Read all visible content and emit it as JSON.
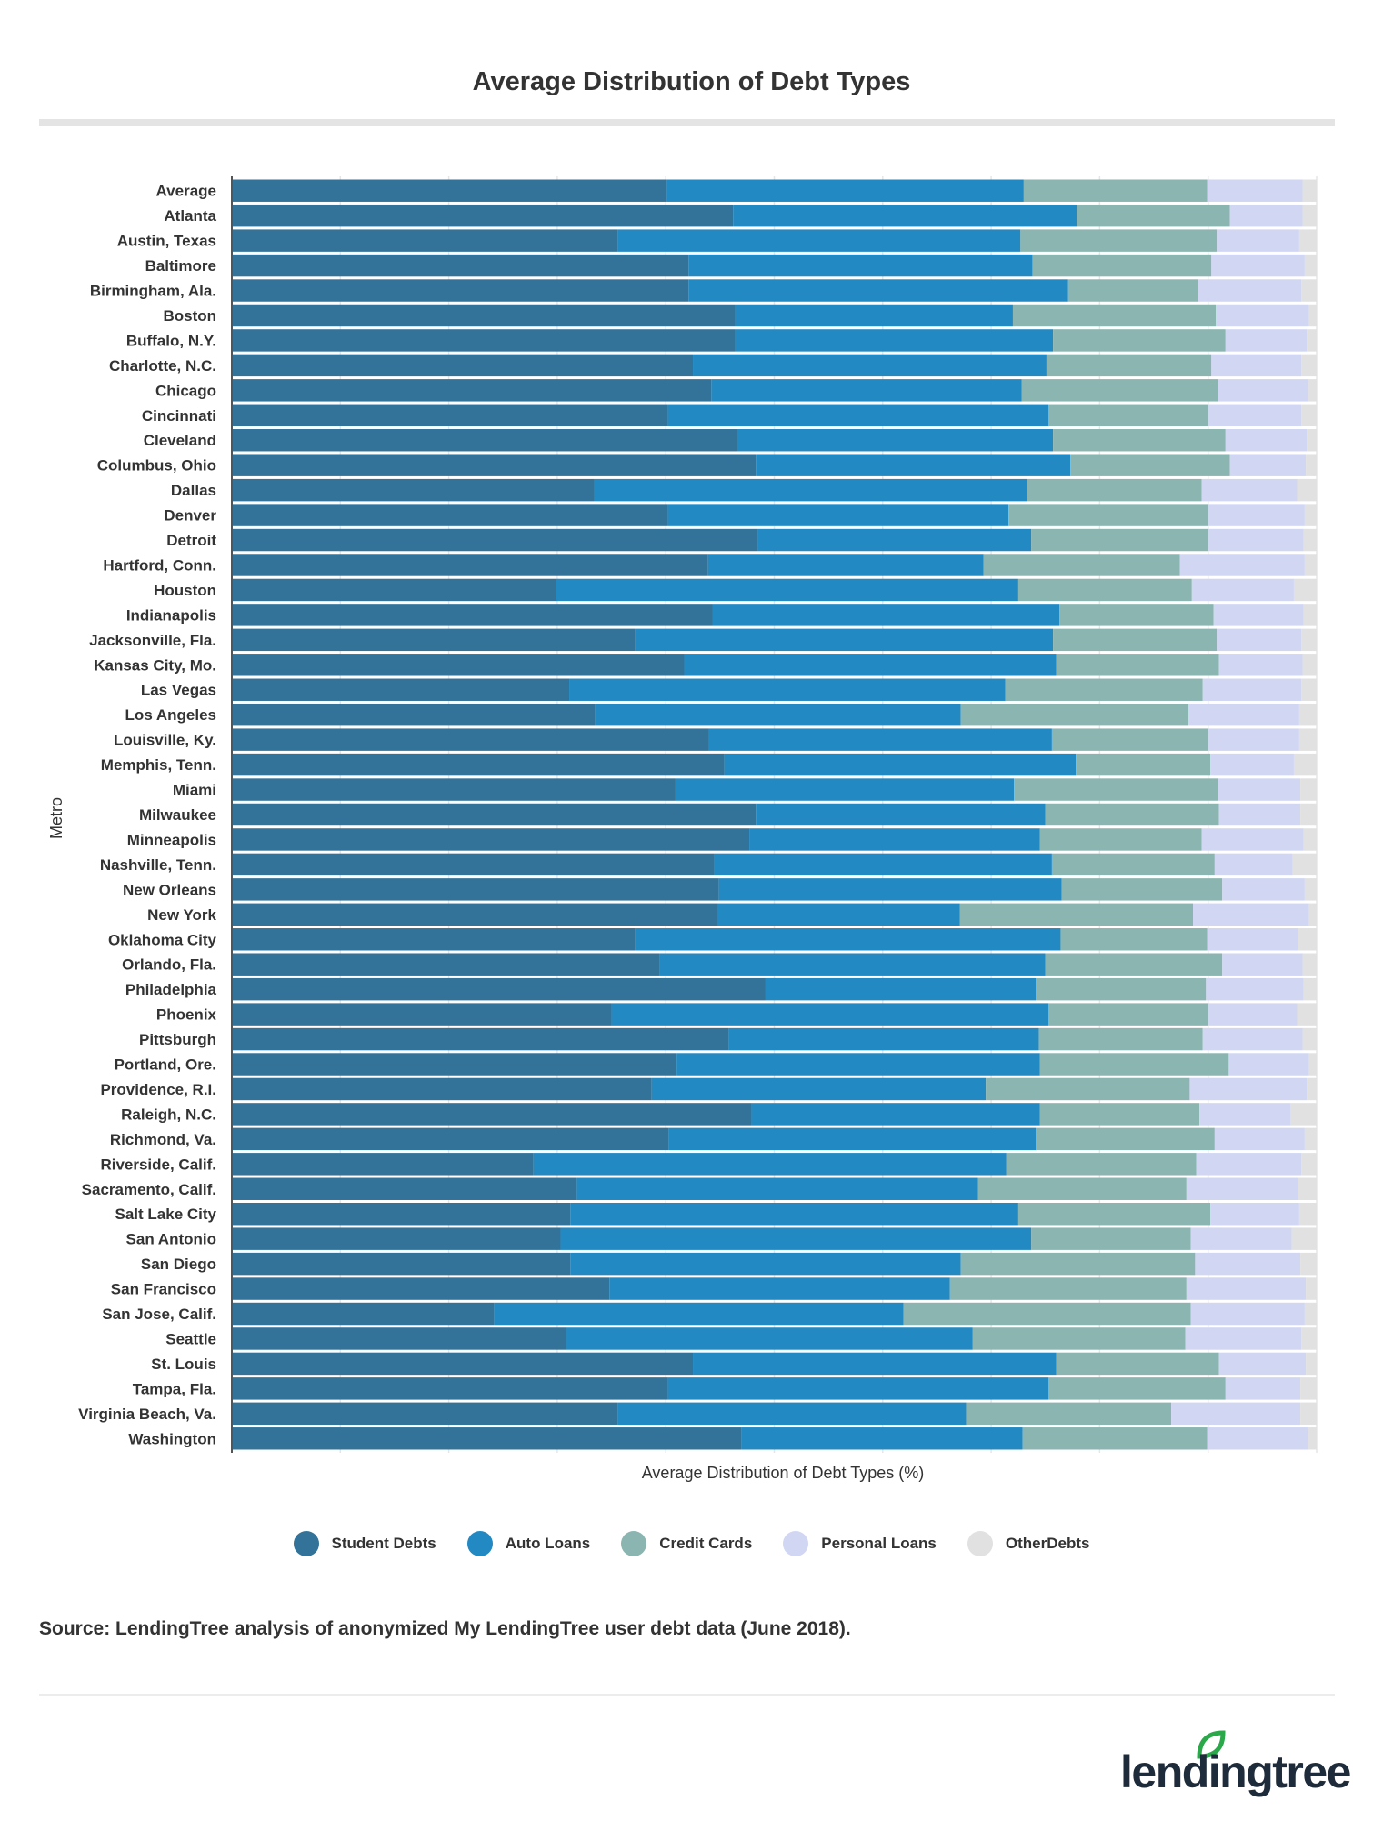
{
  "chart_data": {
    "type": "bar",
    "orientation": "horizontal",
    "stacked": true,
    "title": "Average Distribution of Debt Types",
    "xlabel": "Average Distribution of Debt Types (%)",
    "ylabel": "Metro",
    "xlim": [
      0,
      100
    ],
    "grid": true,
    "legend_position": "bottom",
    "categories": [
      "Average",
      "Atlanta",
      "Austin, Texas",
      "Baltimore",
      "Birmingham, Ala.",
      "Boston",
      "Buffalo, N.Y.",
      "Charlotte, N.C.",
      "Chicago",
      "Cincinnati",
      "Cleveland",
      "Columbus, Ohio",
      "Dallas",
      "Denver",
      "Detroit",
      "Hartford, Conn.",
      "Houston",
      "Indianapolis",
      "Jacksonville, Fla.",
      "Kansas City, Mo.",
      "Las Vegas",
      "Los Angeles",
      "Louisville, Ky.",
      "Memphis, Tenn.",
      "Miami",
      "Milwaukee",
      "Minneapolis",
      "Nashville, Tenn.",
      "New Orleans",
      "New York",
      "Oklahoma City",
      "Orlando, Fla.",
      "Philadelphia",
      "Phoenix",
      "Pittsburgh",
      "Portland, Ore.",
      "Providence, R.I.",
      "Raleigh, N.C.",
      "Richmond, Va.",
      "Riverside, Calif.",
      "Sacramento, Calif.",
      "Salt Lake City",
      "San Antonio",
      "San Diego",
      "San Francisco",
      "San Jose, Calif.",
      "Seattle",
      "St. Louis",
      "Tampa, Fla.",
      "Virginia Beach, Va.",
      "Washington"
    ],
    "series": [
      {
        "name": "Student Debts",
        "color": "#337399",
        "values": [
          40.1,
          46.2,
          35.6,
          42.1,
          42.1,
          46.4,
          46.4,
          42.5,
          44.2,
          40.2,
          46.6,
          48.3,
          33.4,
          40.2,
          48.5,
          43.9,
          29.9,
          44.3,
          37.2,
          41.7,
          31.1,
          33.5,
          44.0,
          45.4,
          40.9,
          48.3,
          47.7,
          44.5,
          44.9,
          44.8,
          37.2,
          39.4,
          49.2,
          35.0,
          45.8,
          41.0,
          38.7,
          47.9,
          40.3,
          27.8,
          31.8,
          31.2,
          30.3,
          31.2,
          34.8,
          24.2,
          30.8,
          42.5,
          40.2,
          35.6,
          47.0
        ]
      },
      {
        "name": "Auto Loans",
        "color": "#2389c3",
        "values": [
          32.9,
          31.7,
          37.1,
          31.7,
          35.0,
          25.6,
          29.3,
          32.6,
          28.6,
          35.1,
          29.1,
          29.0,
          39.9,
          31.4,
          25.2,
          25.4,
          42.6,
          32.0,
          38.5,
          34.3,
          40.2,
          33.7,
          31.6,
          32.4,
          31.2,
          26.7,
          26.8,
          31.1,
          31.6,
          22.3,
          39.2,
          35.6,
          24.9,
          40.3,
          28.6,
          33.5,
          30.8,
          26.6,
          33.8,
          43.6,
          37.0,
          41.3,
          43.4,
          36.0,
          31.4,
          37.7,
          37.5,
          33.5,
          35.1,
          32.1,
          25.9
        ]
      },
      {
        "name": "Credit Cards",
        "color": "#8bb5b1",
        "values": [
          16.9,
          14.1,
          18.1,
          16.5,
          12.0,
          18.7,
          15.9,
          15.2,
          18.1,
          14.7,
          15.9,
          14.7,
          16.1,
          18.4,
          16.3,
          18.1,
          16.0,
          14.2,
          15.1,
          15.0,
          18.2,
          21.0,
          14.4,
          12.4,
          18.8,
          16.0,
          14.9,
          15.0,
          14.8,
          21.5,
          13.5,
          16.3,
          15.7,
          14.7,
          15.1,
          17.4,
          18.8,
          14.7,
          16.5,
          17.5,
          19.2,
          17.7,
          14.7,
          21.6,
          21.8,
          26.5,
          19.6,
          15.0,
          16.3,
          18.9,
          17.0
        ]
      },
      {
        "name": "Personal Loans",
        "color": "#d1d6f3",
        "values": [
          8.8,
          6.7,
          7.6,
          8.6,
          9.5,
          8.6,
          7.5,
          8.3,
          8.3,
          8.6,
          7.5,
          7.0,
          8.8,
          8.9,
          8.8,
          11.5,
          9.4,
          8.3,
          7.8,
          7.7,
          9.1,
          10.2,
          8.4,
          7.7,
          7.6,
          7.5,
          9.4,
          7.2,
          7.6,
          10.7,
          8.4,
          7.4,
          9.0,
          8.2,
          9.2,
          7.4,
          10.8,
          8.4,
          8.3,
          9.7,
          10.3,
          8.2,
          9.3,
          9.7,
          11.0,
          10.5,
          10.7,
          8.0,
          6.9,
          11.9,
          9.3
        ]
      },
      {
        "name": "OtherDebts",
        "color": "#e1e1e1",
        "values": [
          1.3,
          1.3,
          1.6,
          1.1,
          1.4,
          0.7,
          0.9,
          1.4,
          0.8,
          1.4,
          0.9,
          1.0,
          1.8,
          1.1,
          1.2,
          1.1,
          2.1,
          1.2,
          1.4,
          1.3,
          1.4,
          1.6,
          1.6,
          2.1,
          1.5,
          1.5,
          1.2,
          2.2,
          1.1,
          0.7,
          1.7,
          1.3,
          1.2,
          1.8,
          1.3,
          0.7,
          0.9,
          2.4,
          1.1,
          1.4,
          1.7,
          1.6,
          2.3,
          1.5,
          1.0,
          1.1,
          1.4,
          1.0,
          1.5,
          1.5,
          0.8
        ]
      }
    ]
  },
  "footer": {
    "source": "Source: LendingTree analysis of anonymized My LendingTree user debt data (June 2018).",
    "logo_text": "lendingtree"
  }
}
